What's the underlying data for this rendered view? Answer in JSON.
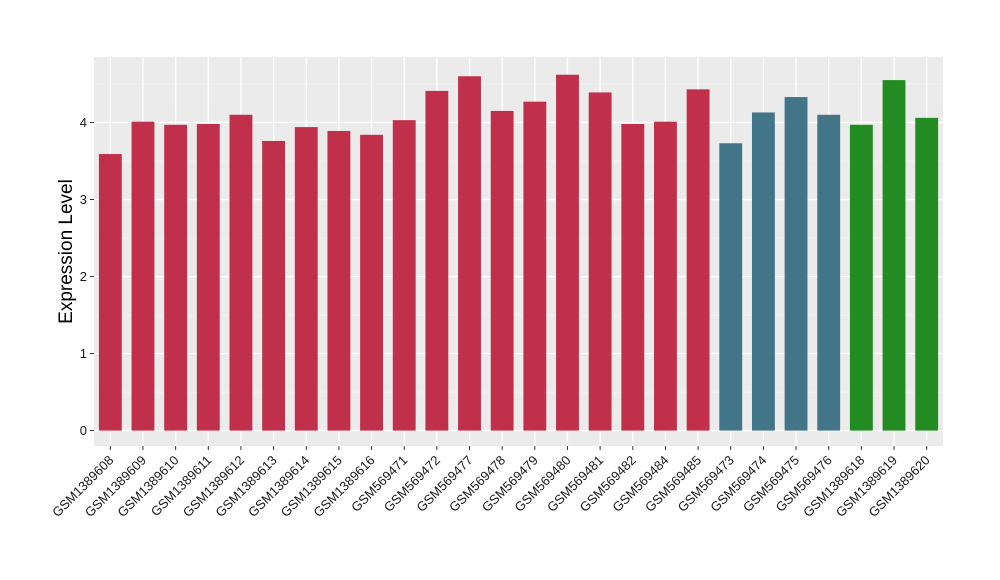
{
  "chart_data": {
    "type": "bar",
    "title": "",
    "xlabel": "",
    "ylabel": "Expression Level",
    "ylim": [
      -0.2,
      4.85
    ],
    "yticks": [
      0,
      1,
      2,
      3,
      4
    ],
    "grid": true,
    "legend": "none",
    "background_color": "#ebebeb",
    "categories": [
      "GSM1389608",
      "GSM1389609",
      "GSM1389610",
      "GSM1389611",
      "GSM1389612",
      "GSM1389613",
      "GSM1389614",
      "GSM1389615",
      "GSM1389616",
      "GSM569471",
      "GSM569472",
      "GSM569477",
      "GSM569478",
      "GSM569479",
      "GSM569480",
      "GSM569481",
      "GSM569482",
      "GSM569484",
      "GSM569485",
      "GSM569473",
      "GSM569474",
      "GSM569475",
      "GSM569476",
      "GSM1389618",
      "GSM1389619",
      "GSM1389620"
    ],
    "values": [
      3.59,
      4.01,
      3.97,
      3.98,
      4.1,
      3.76,
      3.94,
      3.89,
      3.84,
      4.03,
      4.41,
      4.6,
      4.15,
      4.27,
      4.62,
      4.39,
      3.98,
      4.01,
      4.43,
      3.73,
      4.13,
      4.33,
      4.1,
      3.97,
      4.55,
      4.06
    ],
    "bar_colors": [
      "#c0304a",
      "#c0304a",
      "#c0304a",
      "#c0304a",
      "#c0304a",
      "#c0304a",
      "#c0304a",
      "#c0304a",
      "#c0304a",
      "#c0304a",
      "#c0304a",
      "#c0304a",
      "#c0304a",
      "#c0304a",
      "#c0304a",
      "#c0304a",
      "#c0304a",
      "#c0304a",
      "#c0304a",
      "#427588",
      "#427588",
      "#427588",
      "#427588",
      "#228b22",
      "#228b22",
      "#228b22"
    ]
  }
}
